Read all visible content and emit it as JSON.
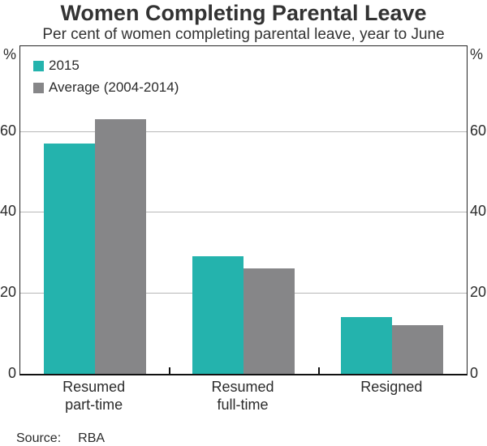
{
  "chart_data": {
    "type": "bar",
    "title": "Women Completing Parental Leave",
    "subtitle": "Per cent of women completing parental leave, year to June",
    "unit": "%",
    "categories": [
      "Resumed\npart-time",
      "Resumed\nfull-time",
      "Resigned"
    ],
    "series": [
      {
        "name": "2015",
        "color": "#24b3ad",
        "values": [
          57,
          29,
          14
        ]
      },
      {
        "name": "Average (2004-2014)",
        "color": "#868688",
        "values": [
          63,
          26,
          12
        ]
      }
    ],
    "ylim": [
      0,
      81
    ],
    "yticks": [
      0,
      20,
      40,
      60
    ],
    "gridlines": [
      20,
      40,
      60
    ],
    "legend_position": "top-left",
    "grid": true,
    "xlabel": "",
    "ylabel": "%",
    "source_label": "Source:",
    "source_value": "RBA",
    "colors": {
      "teal": "#24b3ad",
      "gray": "#868688",
      "gridline": "#b7b7b7",
      "axis": "#111111",
      "text": "#333333"
    }
  }
}
